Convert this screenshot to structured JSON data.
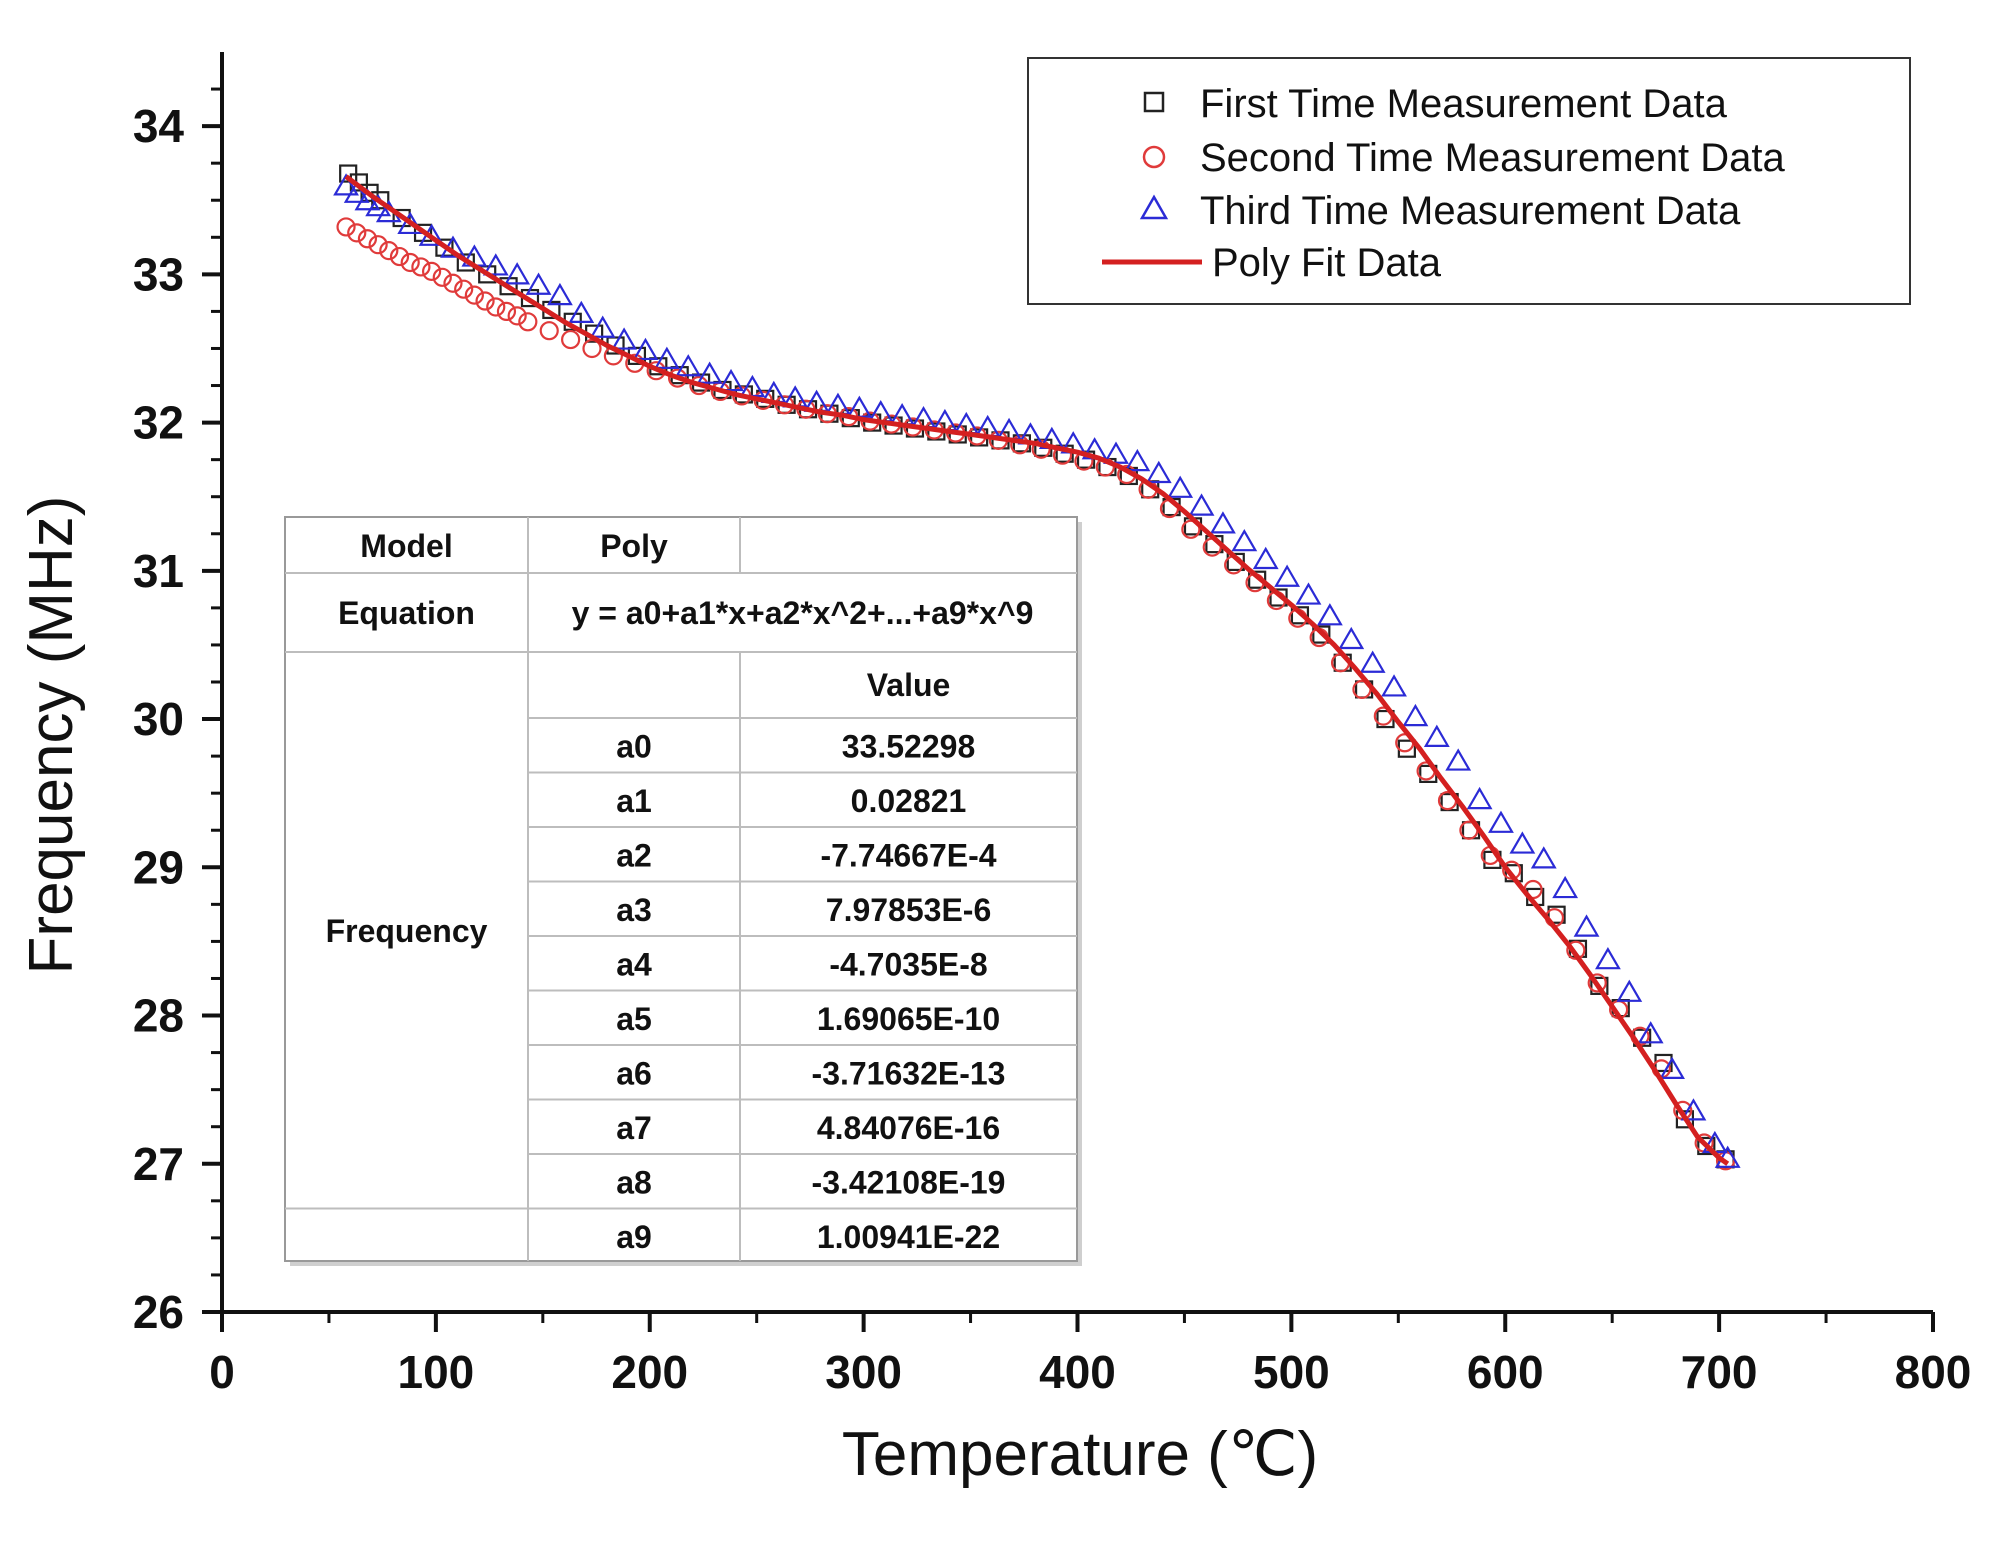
{
  "chart_data": {
    "type": "scatter",
    "title": "",
    "xlabel": "Temperature (℃)",
    "ylabel": "Frequency (MHz)",
    "xlim": [
      0,
      800
    ],
    "ylim": [
      26,
      34.5
    ],
    "x_ticks": [
      "0",
      "100",
      "200",
      "300",
      "400",
      "500",
      "600",
      "700",
      "800"
    ],
    "y_ticks": [
      "26",
      "27",
      "28",
      "29",
      "30",
      "31",
      "32",
      "33",
      "34"
    ],
    "grid": false,
    "legend_position": "top-right",
    "colors": {
      "first": "#222222",
      "second": "#e03b3b",
      "third": "#2b2bd6",
      "fit": "#d42020"
    },
    "series": [
      {
        "name": "First Time Measurement Data",
        "marker": "square",
        "x": [
          59,
          64,
          69,
          74,
          84,
          94,
          104,
          114,
          124,
          134,
          144,
          154,
          164,
          174,
          184,
          194,
          204,
          214,
          224,
          234,
          244,
          254,
          264,
          274,
          284,
          294,
          304,
          314,
          324,
          334,
          344,
          354,
          364,
          374,
          384,
          394,
          404,
          414,
          424,
          434,
          444,
          454,
          464,
          474,
          484,
          494,
          504,
          514,
          524,
          534,
          544,
          554,
          564,
          574,
          584,
          594,
          604,
          614,
          624,
          634,
          644,
          654,
          664,
          674,
          684,
          694,
          703
        ],
        "y": [
          33.68,
          33.62,
          33.55,
          33.5,
          33.38,
          33.28,
          33.18,
          33.08,
          33.0,
          32.92,
          32.84,
          32.76,
          32.68,
          32.6,
          32.52,
          32.45,
          32.38,
          32.32,
          32.27,
          32.22,
          32.19,
          32.16,
          32.12,
          32.09,
          32.06,
          32.03,
          32.0,
          31.98,
          31.96,
          31.94,
          31.92,
          31.9,
          31.88,
          31.86,
          31.83,
          31.79,
          31.75,
          31.7,
          31.64,
          31.55,
          31.43,
          31.3,
          31.18,
          31.06,
          30.94,
          30.82,
          30.7,
          30.57,
          30.38,
          30.2,
          30.0,
          29.8,
          29.63,
          29.44,
          29.25,
          29.05,
          28.96,
          28.8,
          28.68,
          28.45,
          28.2,
          28.05,
          27.85,
          27.68,
          27.3,
          27.12,
          27.03
        ]
      },
      {
        "name": "Second Time Measurement Data",
        "marker": "circle",
        "x": [
          58,
          63,
          68,
          73,
          78,
          83,
          88,
          93,
          98,
          103,
          108,
          113,
          118,
          123,
          128,
          133,
          138,
          143,
          153,
          163,
          173,
          183,
          193,
          203,
          213,
          223,
          233,
          243,
          253,
          263,
          273,
          283,
          293,
          303,
          313,
          323,
          333,
          343,
          353,
          363,
          373,
          383,
          393,
          403,
          413,
          423,
          433,
          443,
          453,
          463,
          473,
          483,
          493,
          503,
          513,
          523,
          533,
          543,
          553,
          563,
          573,
          583,
          593,
          603,
          613,
          623,
          633,
          643,
          653,
          663,
          673,
          683,
          693,
          703
        ],
        "y": [
          33.32,
          33.28,
          33.24,
          33.2,
          33.16,
          33.12,
          33.08,
          33.05,
          33.02,
          32.98,
          32.94,
          32.9,
          32.86,
          32.82,
          32.78,
          32.75,
          32.72,
          32.68,
          32.62,
          32.56,
          32.5,
          32.45,
          32.4,
          32.35,
          32.3,
          32.25,
          32.21,
          32.18,
          32.15,
          32.12,
          32.09,
          32.06,
          32.04,
          32.01,
          31.99,
          31.97,
          31.95,
          31.93,
          31.91,
          31.88,
          31.85,
          31.82,
          31.78,
          31.74,
          31.7,
          31.65,
          31.55,
          31.42,
          31.28,
          31.16,
          31.04,
          30.92,
          30.8,
          30.68,
          30.55,
          30.38,
          30.2,
          30.02,
          29.84,
          29.65,
          29.45,
          29.25,
          29.08,
          28.98,
          28.85,
          28.66,
          28.44,
          28.22,
          28.04,
          27.86,
          27.64,
          27.36,
          27.14,
          27.02
        ]
      },
      {
        "name": "Third Time Measurement Data",
        "marker": "triangle",
        "x": [
          58,
          63,
          68,
          73,
          78,
          88,
          98,
          108,
          118,
          128,
          138,
          148,
          158,
          168,
          178,
          188,
          198,
          208,
          218,
          228,
          238,
          248,
          258,
          268,
          278,
          288,
          298,
          308,
          318,
          328,
          338,
          348,
          358,
          368,
          378,
          388,
          398,
          408,
          418,
          428,
          438,
          448,
          458,
          468,
          478,
          488,
          498,
          508,
          518,
          528,
          538,
          548,
          558,
          568,
          578,
          588,
          598,
          608,
          618,
          628,
          638,
          648,
          658,
          668,
          678,
          688,
          698,
          704
        ],
        "y": [
          33.6,
          33.55,
          33.5,
          33.46,
          33.42,
          33.34,
          33.26,
          33.18,
          33.12,
          33.06,
          33.0,
          32.93,
          32.86,
          32.74,
          32.64,
          32.56,
          32.49,
          32.43,
          32.38,
          32.33,
          32.28,
          32.24,
          32.2,
          32.17,
          32.14,
          32.12,
          32.1,
          32.07,
          32.05,
          32.03,
          32.01,
          31.99,
          31.97,
          31.95,
          31.92,
          31.89,
          31.86,
          31.82,
          31.79,
          31.74,
          31.66,
          31.56,
          31.44,
          31.32,
          31.2,
          31.08,
          30.96,
          30.84,
          30.7,
          30.54,
          30.38,
          30.22,
          30.02,
          29.88,
          29.72,
          29.46,
          29.3,
          29.16,
          29.06,
          28.86,
          28.6,
          28.38,
          28.16,
          27.88,
          27.64,
          27.36,
          27.14,
          27.04
        ]
      },
      {
        "name": "Poly Fit Data",
        "marker": "line",
        "x": [
          58,
          70,
          80,
          90,
          100,
          110,
          120,
          130,
          140,
          150,
          160,
          170,
          180,
          190,
          200,
          210,
          220,
          230,
          240,
          250,
          260,
          270,
          280,
          290,
          300,
          310,
          320,
          330,
          340,
          350,
          360,
          370,
          380,
          390,
          400,
          410,
          420,
          430,
          440,
          450,
          460,
          470,
          480,
          490,
          500,
          510,
          520,
          530,
          540,
          550,
          560,
          570,
          580,
          590,
          600,
          610,
          620,
          630,
          640,
          650,
          660,
          670,
          680,
          690,
          700,
          704
        ],
        "y": [
          33.66,
          33.53,
          33.43,
          33.33,
          33.23,
          33.13,
          33.04,
          32.95,
          32.86,
          32.77,
          32.68,
          32.6,
          32.52,
          32.45,
          32.38,
          32.32,
          32.27,
          32.23,
          32.19,
          32.16,
          32.13,
          32.1,
          32.07,
          32.05,
          32.02,
          32.0,
          31.98,
          31.96,
          31.94,
          31.92,
          31.9,
          31.88,
          31.86,
          31.83,
          31.8,
          31.76,
          31.7,
          31.62,
          31.52,
          31.4,
          31.27,
          31.14,
          31.01,
          30.89,
          30.77,
          30.64,
          30.5,
          30.34,
          30.17,
          29.98,
          29.8,
          29.6,
          29.41,
          29.21,
          29.0,
          28.82,
          28.65,
          28.47,
          28.27,
          28.06,
          27.85,
          27.63,
          27.4,
          27.18,
          27.04,
          27.0
        ]
      }
    ],
    "fit_table": {
      "model_label": "Model",
      "model_value": "Poly",
      "equation_label": "Equation",
      "equation_value": "y = a0+a1*x+a2*x^2+...+a9*x^9",
      "row_label": "Frequency",
      "value_header": "Value",
      "params": [
        {
          "name": "a0",
          "value": "33.52298"
        },
        {
          "name": "a1",
          "value": "0.02821"
        },
        {
          "name": "a2",
          "value": "-7.74667E-4"
        },
        {
          "name": "a3",
          "value": "7.97853E-6"
        },
        {
          "name": "a4",
          "value": "-4.7035E-8"
        },
        {
          "name": "a5",
          "value": "1.69065E-10"
        },
        {
          "name": "a6",
          "value": "-3.71632E-13"
        },
        {
          "name": "a7",
          "value": "4.84076E-16"
        },
        {
          "name": "a8",
          "value": "-3.42108E-19"
        },
        {
          "name": "a9",
          "value": "1.00941E-22"
        }
      ]
    }
  }
}
